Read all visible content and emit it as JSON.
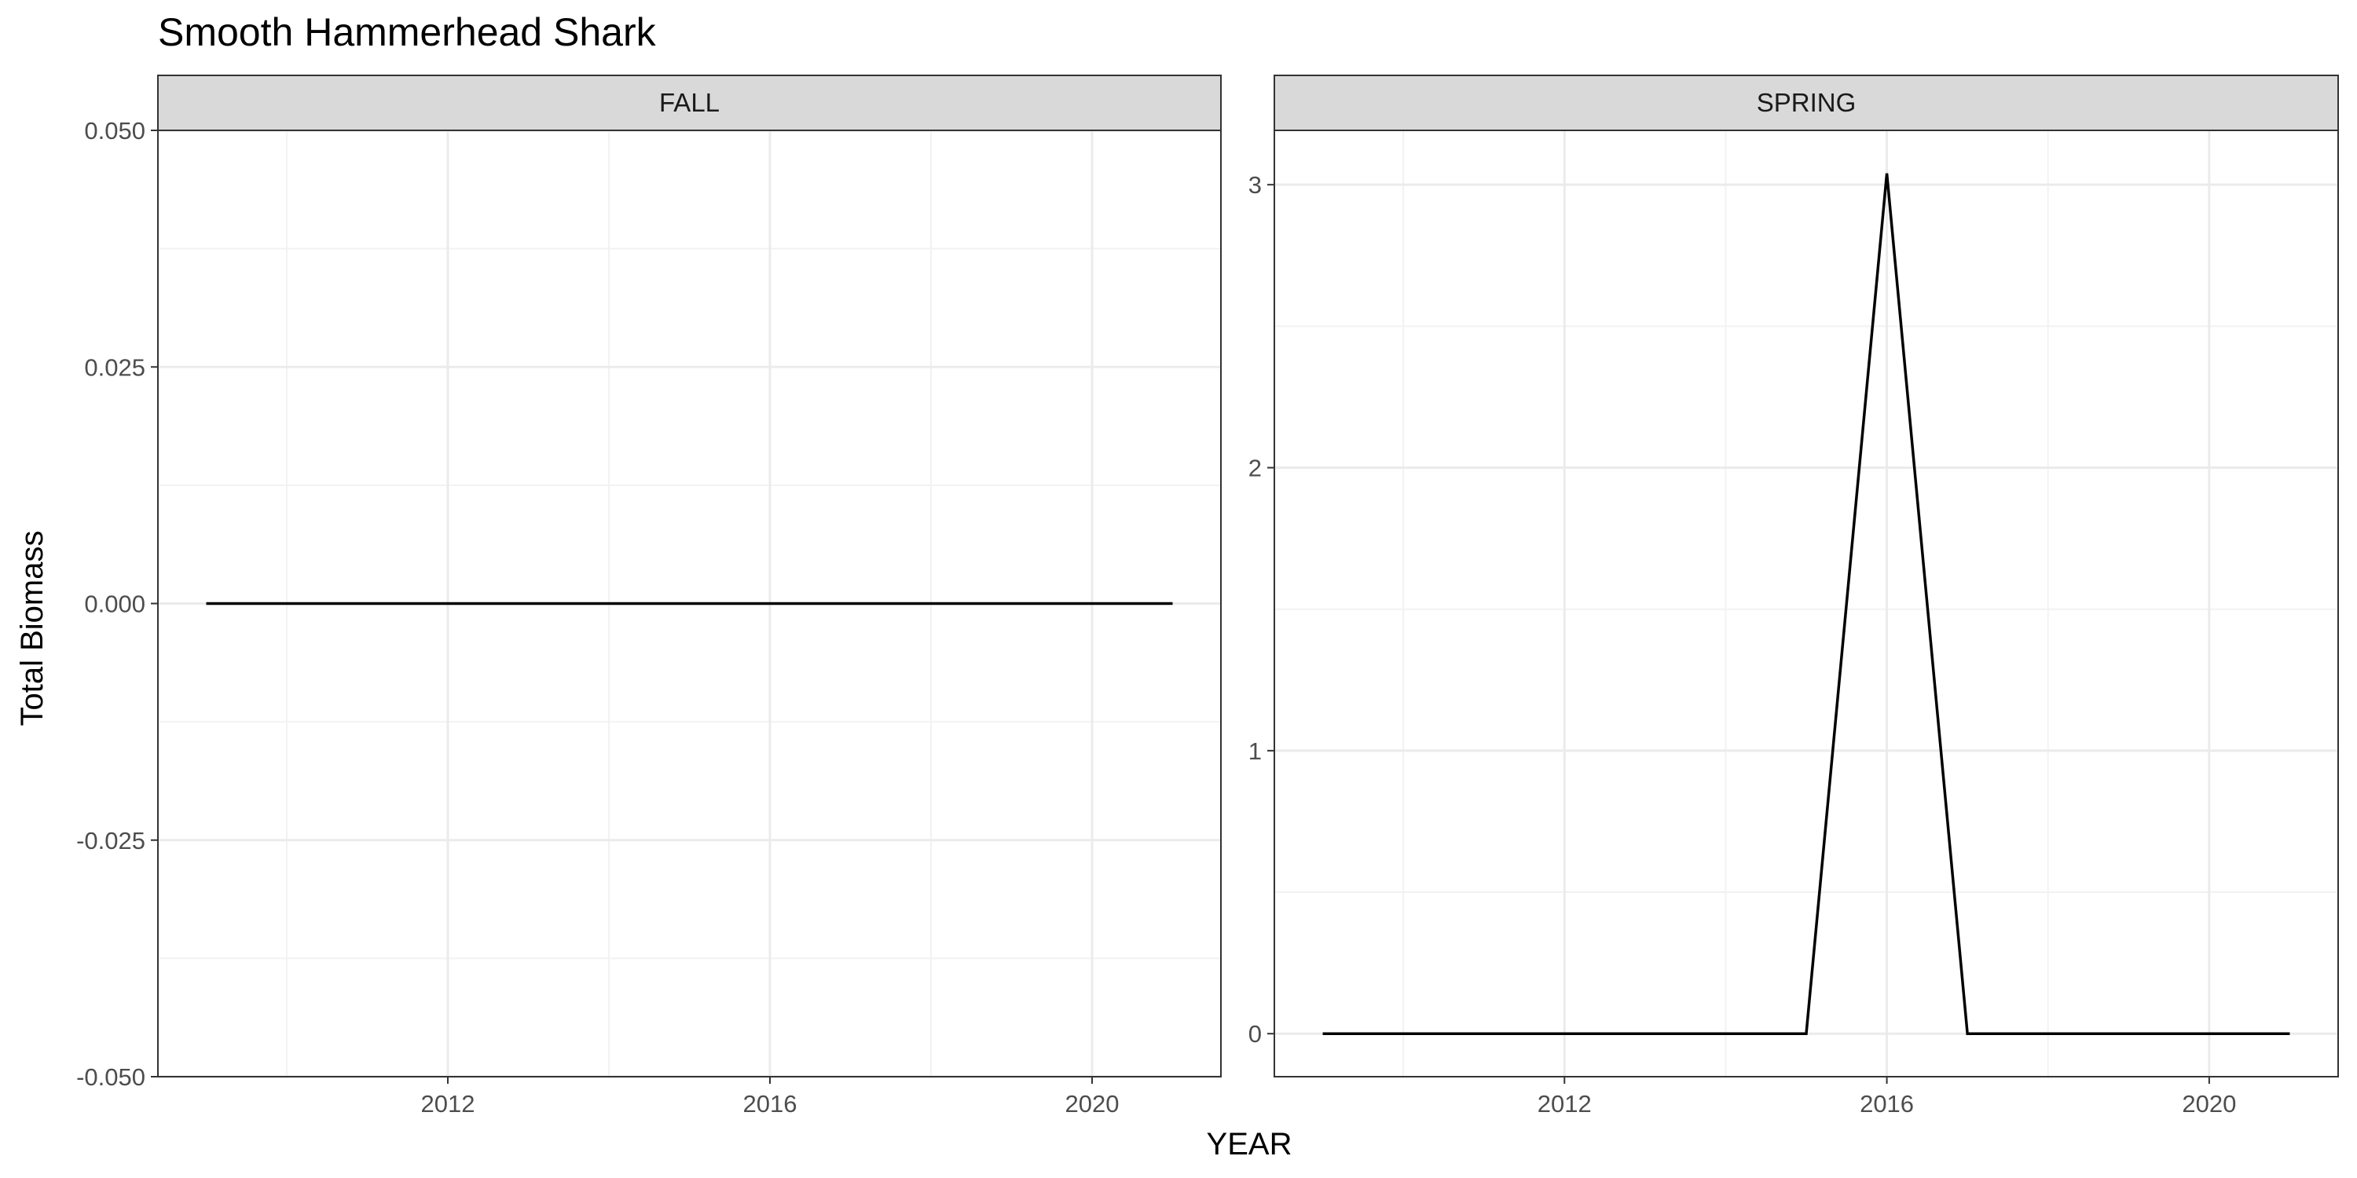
{
  "chart_data": {
    "type": "line",
    "title": "Smooth Hammerhead Shark",
    "xlabel": "YEAR",
    "ylabel": "Total Biomass",
    "grid": true,
    "facets": [
      {
        "label": "FALL",
        "x": [
          2009,
          2010,
          2011,
          2012,
          2013,
          2014,
          2015,
          2016,
          2017,
          2018,
          2019,
          2020,
          2021
        ],
        "y": [
          0,
          0,
          0,
          0,
          0,
          0,
          0,
          0,
          0,
          0,
          0,
          0,
          0
        ],
        "xlim": [
          2008.4,
          2021.6
        ],
        "ylim": [
          -0.05,
          0.05
        ],
        "xticks": [
          2012,
          2016,
          2020
        ],
        "xtick_labels": [
          "2012",
          "2016",
          "2020"
        ],
        "xminor": [
          2010,
          2014,
          2018
        ],
        "yticks": [
          -0.05,
          -0.025,
          0,
          0.025,
          0.05
        ],
        "ytick_labels": [
          "-0.050",
          "-0.025",
          "0.000",
          "0.025",
          "0.050"
        ],
        "yminor": [
          -0.0375,
          -0.0125,
          0.0125,
          0.0375
        ]
      },
      {
        "label": "SPRING",
        "x": [
          2009,
          2010,
          2011,
          2012,
          2013,
          2014,
          2015,
          2016,
          2017,
          2018,
          2019,
          2020,
          2021
        ],
        "y": [
          0,
          0,
          0,
          0,
          0,
          0,
          0,
          3.04,
          0,
          0,
          0,
          0,
          0
        ],
        "xlim": [
          2008.4,
          2021.6
        ],
        "ylim": [
          -0.152,
          3.192
        ],
        "xticks": [
          2012,
          2016,
          2020
        ],
        "xtick_labels": [
          "2012",
          "2016",
          "2020"
        ],
        "xminor": [
          2010,
          2014,
          2018
        ],
        "yticks": [
          0,
          1,
          2,
          3
        ],
        "ytick_labels": [
          "0",
          "1",
          "2",
          "3"
        ],
        "yminor": [
          0.5,
          1.5,
          2.5
        ]
      }
    ],
    "colors": {
      "line": "#000000",
      "strip_fill": "#d9d9d9",
      "panel_border": "#333333",
      "grid_major": "#ebebeb",
      "grid_minor": "#f2f2f2"
    }
  }
}
